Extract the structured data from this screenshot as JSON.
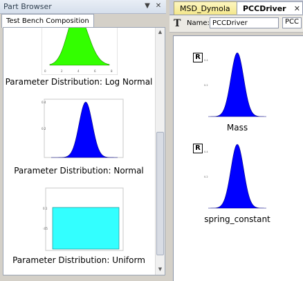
{
  "part_browser": {
    "title": "Part Browser",
    "tab": "Test Bench Composition",
    "items": [
      {
        "label": "Parameter Distribution: Log Normal",
        "kind": "lognormal",
        "color": "#33ff00"
      },
      {
        "label": "Parameter Distribution: Normal",
        "kind": "normal",
        "color": "#0000ff"
      },
      {
        "label": "Parameter Distribution: Uniform",
        "kind": "uniform",
        "color": "#33ffff"
      }
    ]
  },
  "editor": {
    "tabs": [
      {
        "label": "MSD_Dymola",
        "active": false
      },
      {
        "label": "PCCDriver",
        "active": true
      }
    ],
    "close_glyph": "✕",
    "name_label": "Name:",
    "name_value": "PCCDriver",
    "name_value_2": "PCC",
    "components": [
      {
        "label": "Mass",
        "badge": "R",
        "color": "#0000ff"
      },
      {
        "label": "spring_constant",
        "badge": "R",
        "color": "#0000ff"
      }
    ]
  },
  "icons": {
    "pin": "pin-icon",
    "close": "close-icon",
    "name_tool": "text-tool-icon"
  }
}
